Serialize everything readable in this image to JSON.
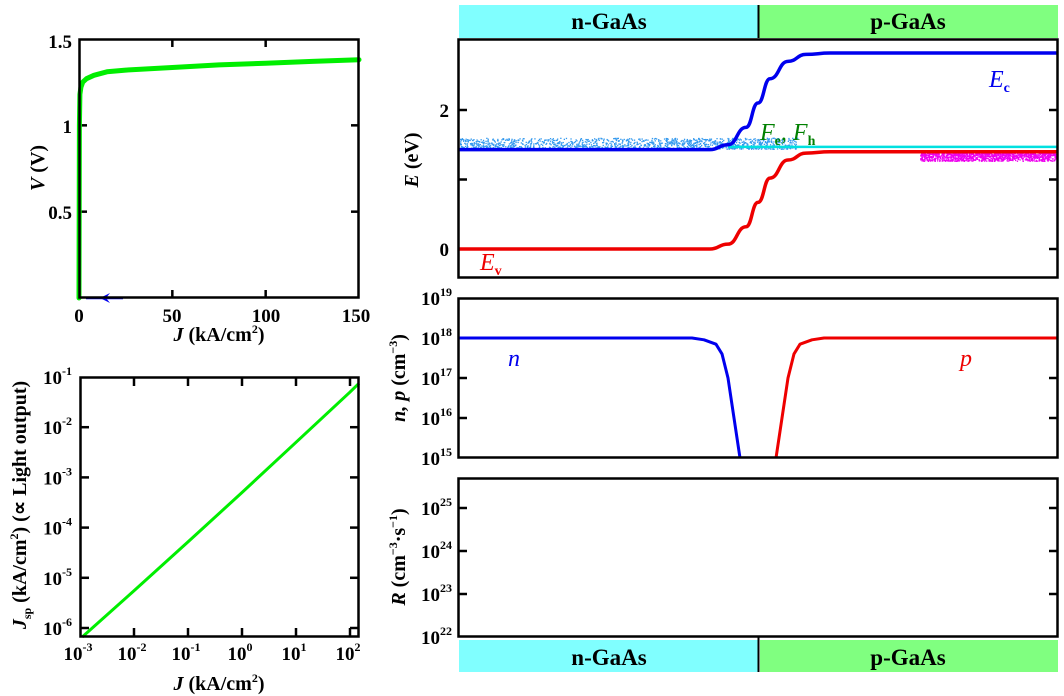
{
  "colors": {
    "green_curve": "#00ee00",
    "blue": "#0000ee",
    "red": "#ee0000",
    "cyan_fermi": "#00e0e0",
    "n_band": "#80ffff",
    "p_band": "#80ff80",
    "e_dots": "#3399ee",
    "h_dots": "#ee00ee",
    "fermi_label": "#008000"
  },
  "bands": {
    "top": {
      "left": "n-GaAs",
      "right": "p-GaAs"
    },
    "bottom": {
      "left": "n-GaAs",
      "right": "p-GaAs"
    }
  },
  "chart_data": [
    {
      "id": "iv-curve",
      "type": "line",
      "title": "",
      "xlabel": "J (kA/cm²)",
      "ylabel": "V (V)",
      "xlim": [
        0,
        150
      ],
      "ylim": [
        0,
        1.5
      ],
      "xticks": [
        "0",
        "50",
        "100",
        "150"
      ],
      "yticks": [
        "0.5",
        "1",
        "1.5"
      ],
      "series": [
        {
          "name": "V-J",
          "color": "green",
          "x": [
            0,
            0.2,
            0.5,
            1,
            2,
            4,
            8,
            15,
            25,
            50,
            75,
            100,
            125,
            150
          ],
          "y": [
            0,
            1.0,
            1.18,
            1.22,
            1.25,
            1.27,
            1.29,
            1.31,
            1.32,
            1.335,
            1.35,
            1.36,
            1.37,
            1.38
          ]
        }
      ],
      "marker": {
        "type": "arrow-left",
        "color": "blue",
        "x": 12,
        "y": 0
      }
    },
    {
      "id": "light-output",
      "type": "line",
      "xscale": "log",
      "yscale": "log",
      "xlabel": "J (kA/cm²)",
      "ylabel": "Jsp (kA/cm²) (∝ Light output)",
      "xlim": [
        0.001,
        150
      ],
      "ylim": [
        6e-07,
        0.1
      ],
      "xticks": [
        "10^-3",
        "10^-2",
        "10^-1",
        "10^0",
        "10^1",
        "10^2"
      ],
      "yticks": [
        "10^-1",
        "10^-2",
        "10^-3",
        "10^-4",
        "10^-5",
        "10^-6"
      ],
      "series": [
        {
          "name": "Jsp",
          "color": "green",
          "x": [
            0.0011,
            0.01,
            0.1,
            1,
            10,
            100,
            150
          ],
          "y": [
            6.5e-07,
            5.5e-06,
            5.2e-05,
            0.0005,
            0.005,
            0.05,
            0.075
          ]
        }
      ]
    },
    {
      "id": "band-diagram",
      "type": "line",
      "xlabel": "",
      "ylabel": "E (eV)",
      "ylim": [
        -0.5,
        3.1
      ],
      "xlim": [
        0,
        1
      ],
      "yticks": [
        "0",
        "2"
      ],
      "series": [
        {
          "name": "Ec",
          "label": "E_c",
          "color": "blue",
          "x": [
            0,
            0.42,
            0.45,
            0.48,
            0.5,
            0.52,
            0.55,
            0.58,
            0.62,
            1
          ],
          "y": [
            1.43,
            1.43,
            1.5,
            1.75,
            2.1,
            2.45,
            2.7,
            2.8,
            2.82,
            2.82
          ]
        },
        {
          "name": "Ev",
          "label": "E_v",
          "color": "red",
          "x": [
            0,
            0.42,
            0.45,
            0.48,
            0.5,
            0.52,
            0.55,
            0.58,
            0.62,
            1
          ],
          "y": [
            0,
            0,
            0.07,
            0.32,
            0.67,
            1.02,
            1.28,
            1.38,
            1.4,
            1.4
          ]
        },
        {
          "name": "Fermi",
          "label": "F_e, F_h",
          "color": "cyan",
          "x": [
            0.45,
            1
          ],
          "y": [
            1.47,
            1.47
          ]
        }
      ]
    },
    {
      "id": "carrier-density",
      "type": "line",
      "yscale": "log",
      "ylabel": "n, p (cm⁻³)",
      "ylim": [
        1000000000000000.0,
        1e+19
      ],
      "yticks": [
        "10^15",
        "10^16",
        "10^17",
        "10^18",
        "10^19"
      ],
      "series": [
        {
          "name": "n",
          "color": "blue",
          "x": [
            0,
            0.39,
            0.41,
            0.43,
            0.44,
            0.45,
            0.46,
            0.47
          ],
          "y": [
            1e+18,
            1e+18,
            9e+17,
            7e+17,
            4e+17,
            1e+17,
            1e+16,
            1000000000000000.0
          ]
        },
        {
          "name": "p",
          "color": "red",
          "x": [
            0.53,
            0.54,
            0.55,
            0.56,
            0.57,
            0.59,
            0.61,
            1
          ],
          "y": [
            1000000000000000.0,
            1e+16,
            1e+17,
            4e+17,
            7e+17,
            9e+17,
            1e+18,
            1e+18
          ]
        }
      ]
    },
    {
      "id": "recombination",
      "type": "line",
      "yscale": "log",
      "ylabel": "R (cm⁻³·s⁻¹)",
      "ylim": [
        1e+22,
        5e+25
      ],
      "yticks": [
        "10^22",
        "10^23",
        "10^24",
        "10^25"
      ],
      "series": []
    }
  ]
}
